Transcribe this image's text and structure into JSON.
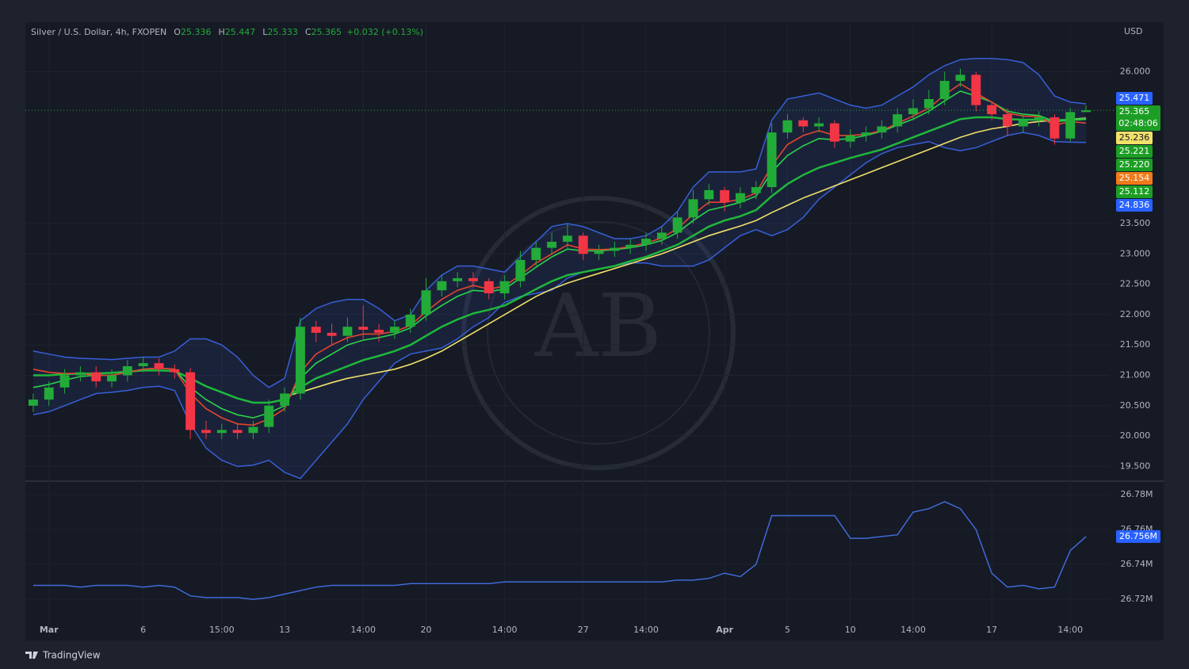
{
  "chart_data": {
    "type": "candlestick",
    "symbol": "Silver / U.S. Dollar, 4h, FXOPEN",
    "ohlc_letters": [
      "O",
      "H",
      "L",
      "C"
    ],
    "change": "+0.032 (+0.13%)",
    "currency": "USD",
    "brand": "TradingView",
    "watermark": "AB",
    "up_color": "#22ab38",
    "down_color": "#f23645",
    "categories": [
      null,
      "Mar",
      null,
      null,
      null,
      null,
      null,
      "6",
      null,
      null,
      null,
      null,
      "15:00",
      null,
      null,
      null,
      "13",
      null,
      null,
      null,
      null,
      "14:00",
      null,
      null,
      null,
      "20",
      null,
      null,
      null,
      null,
      "14:00",
      null,
      null,
      null,
      null,
      "27",
      null,
      null,
      null,
      "14:00",
      null,
      null,
      null,
      null,
      "Apr",
      null,
      null,
      null,
      "5",
      null,
      null,
      null,
      "10",
      null,
      null,
      null,
      "14:00",
      null,
      null,
      null,
      null,
      "17",
      null,
      null,
      null,
      null,
      "14:00",
      null
    ],
    "open": [
      20.5,
      20.6,
      20.8,
      21.0,
      21.05,
      20.9,
      21.0,
      21.15,
      21.2,
      21.1,
      21.05,
      20.1,
      20.05,
      20.1,
      20.05,
      20.15,
      20.5,
      20.7,
      21.8,
      21.7,
      21.65,
      21.8,
      21.75,
      21.7,
      21.8,
      22.0,
      22.4,
      22.55,
      22.6,
      22.55,
      22.35,
      22.55,
      22.9,
      23.1,
      23.2,
      23.3,
      23.0,
      23.05,
      23.1,
      23.15,
      23.25,
      23.35,
      23.6,
      23.9,
      24.05,
      23.85,
      24.0,
      24.1,
      25.0,
      25.2,
      25.1,
      25.15,
      24.85,
      24.95,
      25.0,
      25.1,
      25.3,
      25.4,
      25.55,
      25.85,
      25.95,
      25.45,
      25.3,
      25.1,
      25.2,
      25.25,
      24.9,
      25.336
    ],
    "high": [
      20.7,
      20.9,
      21.1,
      21.15,
      21.15,
      21.1,
      21.25,
      21.3,
      21.28,
      21.18,
      21.12,
      20.25,
      20.2,
      20.2,
      20.25,
      20.6,
      20.8,
      21.95,
      21.9,
      21.85,
      21.95,
      22.15,
      21.85,
      21.9,
      22.1,
      22.6,
      22.65,
      22.7,
      22.7,
      22.6,
      22.65,
      23.05,
      23.2,
      23.35,
      23.5,
      23.35,
      23.15,
      23.2,
      23.25,
      23.35,
      23.45,
      23.7,
      24.05,
      24.15,
      24.1,
      24.1,
      24.2,
      25.15,
      25.3,
      25.25,
      25.25,
      25.2,
      25.05,
      25.1,
      25.2,
      25.4,
      25.55,
      25.7,
      26.0,
      26.05,
      26.0,
      25.5,
      25.4,
      25.3,
      25.35,
      25.3,
      25.4,
      25.447
    ],
    "low": [
      20.4,
      20.5,
      20.7,
      20.9,
      20.8,
      20.8,
      20.9,
      21.05,
      21.0,
      20.95,
      19.95,
      19.95,
      19.95,
      19.95,
      19.95,
      20.05,
      20.4,
      20.6,
      21.55,
      21.5,
      21.55,
      21.6,
      21.55,
      21.6,
      21.7,
      21.9,
      22.3,
      22.45,
      22.45,
      22.25,
      22.25,
      22.45,
      22.8,
      23.0,
      23.1,
      22.9,
      22.9,
      22.95,
      23.0,
      23.05,
      23.15,
      23.25,
      23.5,
      23.8,
      23.7,
      23.75,
      23.9,
      24.0,
      24.9,
      25.0,
      25.0,
      24.75,
      24.75,
      24.85,
      24.9,
      25.0,
      25.2,
      25.3,
      25.45,
      25.75,
      25.35,
      25.2,
      24.95,
      25.0,
      25.1,
      24.8,
      24.85,
      25.333
    ],
    "close": [
      20.6,
      20.8,
      21.0,
      21.05,
      20.9,
      21.0,
      21.15,
      21.2,
      21.1,
      21.05,
      20.1,
      20.05,
      20.1,
      20.05,
      20.15,
      20.5,
      20.7,
      21.8,
      21.7,
      21.65,
      21.8,
      21.75,
      21.7,
      21.8,
      22.0,
      22.4,
      22.55,
      22.6,
      22.55,
      22.35,
      22.55,
      22.9,
      23.1,
      23.2,
      23.3,
      23.0,
      23.05,
      23.1,
      23.15,
      23.25,
      23.35,
      23.6,
      23.9,
      24.05,
      23.85,
      24.0,
      24.1,
      25.0,
      25.2,
      25.1,
      25.15,
      24.85,
      24.95,
      25.0,
      25.1,
      25.3,
      25.4,
      25.55,
      25.85,
      25.95,
      25.45,
      25.3,
      25.1,
      25.2,
      25.25,
      24.9,
      25.336,
      25.365
    ],
    "bollinger": {
      "color": "#3660d8",
      "upper": [
        21.4,
        21.35,
        21.3,
        21.28,
        21.27,
        21.26,
        21.28,
        21.3,
        21.3,
        21.4,
        21.6,
        21.6,
        21.5,
        21.3,
        21.0,
        20.8,
        20.95,
        21.9,
        22.1,
        22.2,
        22.25,
        22.25,
        22.1,
        21.9,
        22.0,
        22.4,
        22.65,
        22.8,
        22.8,
        22.75,
        22.7,
        22.95,
        23.2,
        23.45,
        23.5,
        23.45,
        23.35,
        23.25,
        23.25,
        23.3,
        23.45,
        23.7,
        24.1,
        24.35,
        24.35,
        24.35,
        24.4,
        25.2,
        25.55,
        25.6,
        25.65,
        25.55,
        25.45,
        25.4,
        25.45,
        25.6,
        25.75,
        25.95,
        26.1,
        26.2,
        26.22,
        26.22,
        26.2,
        26.15,
        25.95,
        25.6,
        25.5,
        25.471
      ],
      "lower": [
        20.35,
        20.4,
        20.5,
        20.6,
        20.7,
        20.72,
        20.75,
        20.8,
        20.82,
        20.75,
        20.2,
        19.8,
        19.6,
        19.5,
        19.52,
        19.6,
        19.4,
        19.3,
        19.6,
        19.9,
        20.2,
        20.6,
        20.9,
        21.2,
        21.35,
        21.4,
        21.45,
        21.6,
        21.8,
        21.95,
        22.2,
        22.3,
        22.35,
        22.4,
        22.6,
        22.7,
        22.75,
        22.8,
        22.85,
        22.85,
        22.8,
        22.8,
        22.8,
        22.9,
        23.1,
        23.3,
        23.4,
        23.3,
        23.4,
        23.6,
        23.9,
        24.1,
        24.3,
        24.5,
        24.65,
        24.75,
        24.8,
        24.85,
        24.75,
        24.7,
        24.75,
        24.85,
        24.95,
        25.0,
        24.95,
        24.85,
        24.84,
        24.836
      ]
    },
    "series": [
      {
        "color": "#f0e06a",
        "values": [
          null,
          null,
          null,
          null,
          null,
          null,
          null,
          null,
          null,
          null,
          null,
          null,
          null,
          null,
          null,
          null,
          20.65,
          20.72,
          20.8,
          20.88,
          20.95,
          21.0,
          21.05,
          21.1,
          21.18,
          21.28,
          21.4,
          21.55,
          21.7,
          21.85,
          22.0,
          22.15,
          22.3,
          22.42,
          22.52,
          22.6,
          22.68,
          22.76,
          22.84,
          22.92,
          23.0,
          23.1,
          23.2,
          23.3,
          23.38,
          23.46,
          23.55,
          23.68,
          23.8,
          23.92,
          24.02,
          24.12,
          24.22,
          24.32,
          24.42,
          24.52,
          24.62,
          24.72,
          24.82,
          24.92,
          25.0,
          25.06,
          25.1,
          25.15,
          25.18,
          25.2,
          25.22,
          25.236
        ]
      },
      {
        "color": "#1fb83a",
        "values": [
          21.0,
          21.0,
          21.02,
          21.03,
          21.03,
          21.04,
          21.06,
          21.08,
          21.08,
          21.07,
          20.95,
          20.82,
          20.72,
          20.62,
          20.55,
          20.55,
          20.6,
          20.8,
          20.95,
          21.05,
          21.15,
          21.25,
          21.32,
          21.4,
          21.5,
          21.65,
          21.8,
          21.92,
          22.02,
          22.08,
          22.15,
          22.28,
          22.42,
          22.55,
          22.65,
          22.7,
          22.75,
          22.8,
          22.88,
          22.95,
          23.05,
          23.15,
          23.3,
          23.45,
          23.55,
          23.62,
          23.72,
          23.95,
          24.15,
          24.3,
          24.42,
          24.5,
          24.58,
          24.65,
          24.72,
          24.82,
          24.92,
          25.02,
          25.12,
          25.22,
          25.25,
          25.25,
          25.22,
          25.21,
          25.21,
          25.2,
          25.21,
          25.221
        ]
      },
      {
        "color": "#2bd34a",
        "values": [
          20.8,
          20.85,
          20.92,
          20.98,
          21.0,
          21.0,
          21.05,
          21.1,
          21.12,
          21.1,
          20.8,
          20.6,
          20.45,
          20.35,
          20.3,
          20.38,
          20.5,
          20.95,
          21.2,
          21.35,
          21.5,
          21.58,
          21.62,
          21.68,
          21.78,
          21.98,
          22.15,
          22.3,
          22.4,
          22.38,
          22.42,
          22.6,
          22.78,
          22.95,
          23.08,
          23.05,
          23.05,
          23.07,
          23.1,
          23.15,
          23.22,
          23.35,
          23.55,
          23.72,
          23.78,
          23.85,
          23.95,
          24.35,
          24.62,
          24.78,
          24.9,
          24.88,
          24.9,
          24.95,
          25.02,
          25.12,
          25.22,
          25.35,
          25.52,
          25.68,
          25.6,
          25.5,
          25.35,
          25.3,
          25.28,
          25.18,
          25.2,
          25.22
        ]
      },
      {
        "color": "#e2452e",
        "values": [
          21.1,
          21.05,
          21.03,
          21.03,
          21.0,
          21.0,
          21.05,
          21.1,
          21.12,
          21.1,
          20.7,
          20.45,
          20.3,
          20.2,
          20.18,
          20.28,
          20.45,
          21.05,
          21.35,
          21.5,
          21.62,
          21.68,
          21.68,
          21.72,
          21.82,
          22.05,
          22.25,
          22.4,
          22.48,
          22.42,
          22.47,
          22.65,
          22.85,
          23.0,
          23.15,
          23.08,
          23.07,
          23.08,
          23.12,
          23.18,
          23.26,
          23.42,
          23.65,
          23.85,
          23.85,
          23.9,
          24.0,
          24.45,
          24.8,
          24.95,
          25.03,
          24.95,
          24.95,
          24.97,
          25.03,
          25.15,
          25.27,
          25.4,
          25.62,
          25.8,
          25.65,
          25.5,
          25.32,
          25.27,
          25.26,
          25.12,
          25.18,
          25.154
        ]
      }
    ],
    "ylim": [
      19.27,
      26.79
    ],
    "yticks": [
      {
        "value": 19.5,
        "label": "19.500"
      },
      {
        "value": 20,
        "label": "20.000"
      },
      {
        "value": 20.5,
        "label": "20.500"
      },
      {
        "value": 21,
        "label": "21.000"
      },
      {
        "value": 21.5,
        "label": "21.500"
      },
      {
        "value": 22,
        "label": "22.000"
      },
      {
        "value": 22.5,
        "label": "22.500"
      },
      {
        "value": 23,
        "label": "23.000"
      },
      {
        "value": 23.5,
        "label": "23.500"
      },
      {
        "value": 26,
        "label": "26.000"
      }
    ],
    "grid": true,
    "price_tags": [
      {
        "value": 25.471,
        "label": "25.471",
        "color": "#2962ff"
      },
      {
        "value": 25.365,
        "label": "25.365",
        "color": "#1c9e24",
        "countdown": "02:48:06"
      },
      {
        "value": 25.236,
        "label": "25.236",
        "color": "#f0e06a"
      },
      {
        "value": 25.221,
        "label": "25.221",
        "color": "#1c9e24"
      },
      {
        "value": 25.22,
        "label": "25.220",
        "color": "#1c9e24"
      },
      {
        "value": 25.154,
        "label": "25.154",
        "color": "#f07a1a"
      },
      {
        "value": 25.112,
        "label": "25.112",
        "color": "#1c9e24"
      },
      {
        "value": 24.836,
        "label": "24.836",
        "color": "#2962ff"
      }
    ],
    "lower_pane": {
      "color": "#3f6ad8",
      "values": [
        26.728,
        26.728,
        26.728,
        26.727,
        26.728,
        26.728,
        26.728,
        26.727,
        26.728,
        26.727,
        26.722,
        26.721,
        26.721,
        26.721,
        26.72,
        26.721,
        26.723,
        26.725,
        26.727,
        26.728,
        26.728,
        26.728,
        26.728,
        26.728,
        26.729,
        26.729,
        26.729,
        26.729,
        26.729,
        26.729,
        26.73,
        26.73,
        26.73,
        26.73,
        26.73,
        26.73,
        26.73,
        26.73,
        26.73,
        26.73,
        26.73,
        26.731,
        26.731,
        26.732,
        26.735,
        26.733,
        26.74,
        26.768,
        26.768,
        26.768,
        26.768,
        26.768,
        26.755,
        26.755,
        26.756,
        26.757,
        26.77,
        26.772,
        26.776,
        26.772,
        26.76,
        26.735,
        26.727,
        26.728,
        26.726,
        26.727,
        26.748,
        26.756
      ],
      "ylim": [
        26.6973,
        26.7873
      ],
      "yticks": [
        {
          "value": 26.72,
          "label": "26.72M"
        },
        {
          "value": 26.74,
          "label": "26.74M"
        },
        {
          "value": 26.76,
          "label": "26.76M"
        },
        {
          "value": 26.78,
          "label": "26.78M"
        }
      ],
      "tag": {
        "value": 26.756,
        "label": "26.756M"
      }
    }
  }
}
